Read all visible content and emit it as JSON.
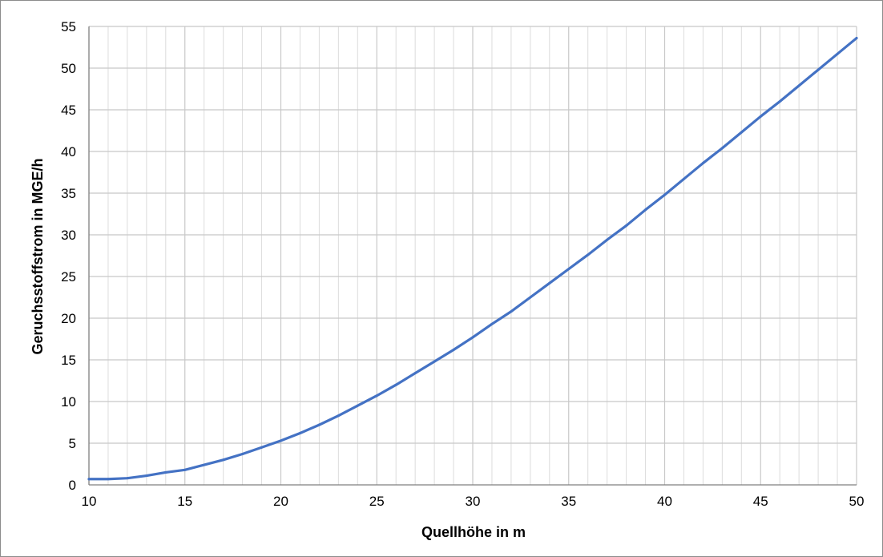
{
  "chart_data": {
    "type": "line",
    "xlabel": "Quellhöhe in m",
    "ylabel": "Geruchsstoffstrom in MGE/h",
    "xlim": [
      10,
      50
    ],
    "ylim": [
      0,
      55
    ],
    "x_major_ticks": [
      10,
      15,
      20,
      25,
      30,
      35,
      40,
      45,
      50
    ],
    "y_major_ticks": [
      0,
      5,
      10,
      15,
      20,
      25,
      30,
      35,
      40,
      45,
      50,
      55
    ],
    "x_minor_step": 1,
    "grid": true,
    "legend": "none",
    "colors": {
      "line": "#4472C4",
      "major_grid": "#c8c8c8",
      "minor_grid": "#dcdcdc",
      "axis": "#7f7f7f"
    },
    "series": [
      {
        "x": [
          10,
          11,
          12,
          13,
          14,
          15,
          16,
          17,
          18,
          19,
          20,
          21,
          22,
          23,
          24,
          25,
          26,
          27,
          28,
          29,
          30,
          31,
          32,
          33,
          34,
          35,
          36,
          37,
          38,
          39,
          40,
          41,
          42,
          43,
          44,
          45,
          46,
          47,
          48,
          49,
          50
        ],
        "values": [
          0.7,
          0.7,
          0.8,
          1.1,
          1.5,
          1.8,
          2.4,
          3.0,
          3.7,
          4.5,
          5.3,
          6.2,
          7.2,
          8.3,
          9.5,
          10.7,
          12.0,
          13.4,
          14.8,
          16.2,
          17.7,
          19.3,
          20.8,
          22.5,
          24.2,
          25.9,
          27.6,
          29.4,
          31.1,
          33.0,
          34.8,
          36.7,
          38.6,
          40.4,
          42.3,
          44.2,
          46.0,
          47.9,
          49.8,
          51.7,
          53.6
        ]
      }
    ]
  }
}
